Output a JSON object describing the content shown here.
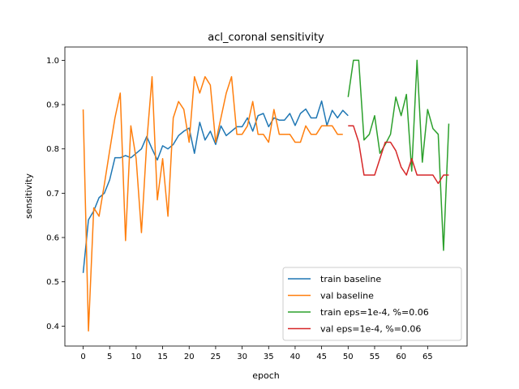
{
  "chart_data": {
    "type": "line",
    "title": "acl_coronal sensitivity",
    "xlabel": "epoch",
    "ylabel": "sensitivity",
    "xlim": [
      -3.45,
      72.45
    ],
    "ylim": [
      0.355,
      1.03
    ],
    "xticks": [
      0,
      5,
      10,
      15,
      20,
      25,
      30,
      35,
      40,
      45,
      50,
      55,
      60,
      65
    ],
    "yticks": [
      0.4,
      0.5,
      0.6,
      0.7,
      0.8,
      0.9,
      1.0
    ],
    "ytick_labels": [
      "0.4",
      "0.5",
      "0.6",
      "0.7",
      "0.8",
      "0.9",
      "1.0"
    ],
    "legend": "lower-right",
    "grid": false,
    "series": [
      {
        "name": "train baseline",
        "color": "#1f77b4",
        "x_start": 0,
        "values": [
          0.52,
          0.64,
          0.66,
          0.69,
          0.7,
          0.73,
          0.78,
          0.78,
          0.785,
          0.78,
          0.79,
          0.8,
          0.828,
          0.8,
          0.775,
          0.807,
          0.8,
          0.81,
          0.83,
          0.84,
          0.847,
          0.79,
          0.86,
          0.82,
          0.84,
          0.81,
          0.852,
          0.83,
          0.84,
          0.85,
          0.85,
          0.87,
          0.84,
          0.875,
          0.88,
          0.85,
          0.87,
          0.865,
          0.865,
          0.88,
          0.853,
          0.88,
          0.89,
          0.87,
          0.87,
          0.908,
          0.853,
          0.887,
          0.87,
          0.887,
          0.875
        ]
      },
      {
        "name": "val baseline",
        "color": "#ff7f0e",
        "x_start": 0,
        "values": [
          0.889,
          0.389,
          0.667,
          0.648,
          0.72,
          0.796,
          0.87,
          0.926,
          0.593,
          0.852,
          0.778,
          0.611,
          0.815,
          0.963,
          0.685,
          0.778,
          0.648,
          0.87,
          0.907,
          0.889,
          0.815,
          0.963,
          0.926,
          0.963,
          0.944,
          0.815,
          0.87,
          0.926,
          0.963,
          0.833,
          0.833,
          0.852,
          0.907,
          0.833,
          0.833,
          0.815,
          0.889,
          0.833,
          0.833,
          0.833,
          0.815,
          0.815,
          0.852,
          0.833,
          0.833,
          0.852,
          0.852,
          0.852,
          0.833,
          0.833
        ]
      },
      {
        "name": "train eps=1e-4, %=0.06",
        "color": "#2ca02c",
        "x_start": 50,
        "values": [
          0.917,
          1.0,
          1.0,
          0.82,
          0.833,
          0.875,
          0.79,
          0.81,
          0.833,
          0.917,
          0.875,
          0.923,
          0.75,
          1.0,
          0.77,
          0.889,
          0.846,
          0.833,
          0.571,
          0.857
        ]
      },
      {
        "name": "val eps=1e-4, %=0.06",
        "color": "#d62728",
        "x_start": 50,
        "values": [
          0.852,
          0.852,
          0.815,
          0.741,
          0.741,
          0.741,
          0.778,
          0.815,
          0.815,
          0.796,
          0.759,
          0.741,
          0.778,
          0.741,
          0.741,
          0.741,
          0.741,
          0.722,
          0.741,
          0.741
        ]
      }
    ]
  }
}
